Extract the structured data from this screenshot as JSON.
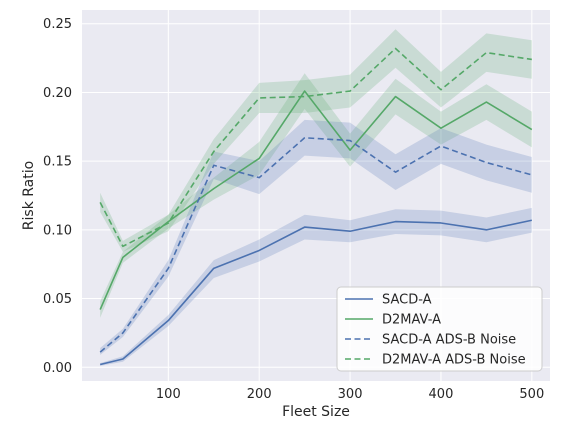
{
  "chart_data": {
    "type": "line",
    "title": "",
    "xlabel": "Fleet Size",
    "ylabel": "Risk Ratio",
    "xlim": [
      5,
      520
    ],
    "ylim": [
      -0.01,
      0.26
    ],
    "xticks": [
      100,
      200,
      300,
      400,
      500
    ],
    "xtick_labels": [
      "100",
      "200",
      "300",
      "400",
      "500"
    ],
    "yticks": [
      0.0,
      0.05,
      0.1,
      0.15,
      0.2,
      0.25
    ],
    "ytick_labels": [
      "0.00",
      "0.05",
      "0.10",
      "0.15",
      "0.20",
      "0.25"
    ],
    "grid": true,
    "background": "#eaeaf2",
    "legend_position": "lower right",
    "x": [
      25,
      50,
      100,
      150,
      200,
      250,
      300,
      350,
      400,
      450,
      500
    ],
    "series": [
      {
        "name": "SACD-A",
        "color": "#4c72b0",
        "style": "solid",
        "values": [
          0.002,
          0.006,
          0.034,
          0.072,
          0.085,
          0.102,
          0.099,
          0.106,
          0.105,
          0.1,
          0.107
        ],
        "band": [
          [
            0.001,
            0.003
          ],
          [
            0.004,
            0.008
          ],
          [
            0.03,
            0.038
          ],
          [
            0.065,
            0.078
          ],
          [
            0.077,
            0.093
          ],
          [
            0.093,
            0.111
          ],
          [
            0.091,
            0.107
          ],
          [
            0.097,
            0.115
          ],
          [
            0.096,
            0.114
          ],
          [
            0.091,
            0.109
          ],
          [
            0.098,
            0.116
          ]
        ]
      },
      {
        "name": "D2MAV-A",
        "color": "#55a868",
        "style": "solid",
        "values": [
          0.042,
          0.08,
          0.106,
          0.13,
          0.152,
          0.201,
          0.158,
          0.197,
          0.174,
          0.193,
          0.173
        ],
        "band": [
          [
            0.036,
            0.048
          ],
          [
            0.076,
            0.084
          ],
          [
            0.101,
            0.111
          ],
          [
            0.122,
            0.138
          ],
          [
            0.14,
            0.164
          ],
          [
            0.188,
            0.214
          ],
          [
            0.146,
            0.17
          ],
          [
            0.184,
            0.21
          ],
          [
            0.162,
            0.186
          ],
          [
            0.18,
            0.206
          ],
          [
            0.16,
            0.186
          ]
        ]
      },
      {
        "name": "SACD-A ADS-B Noise",
        "color": "#4c72b0",
        "style": "dashed",
        "values": [
          0.011,
          0.025,
          0.072,
          0.147,
          0.138,
          0.167,
          0.165,
          0.142,
          0.161,
          0.149,
          0.14
        ],
        "band": [
          [
            0.009,
            0.014
          ],
          [
            0.022,
            0.028
          ],
          [
            0.066,
            0.078
          ],
          [
            0.137,
            0.157
          ],
          [
            0.126,
            0.15
          ],
          [
            0.154,
            0.18
          ],
          [
            0.152,
            0.178
          ],
          [
            0.129,
            0.155
          ],
          [
            0.148,
            0.174
          ],
          [
            0.136,
            0.162
          ],
          [
            0.127,
            0.153
          ]
        ]
      },
      {
        "name": "D2MAV-A ADS-B Noise",
        "color": "#55a868",
        "style": "dashed",
        "values": [
          0.12,
          0.088,
          0.105,
          0.157,
          0.196,
          0.197,
          0.201,
          0.232,
          0.202,
          0.229,
          0.224
        ],
        "band": [
          [
            0.113,
            0.127
          ],
          [
            0.084,
            0.092
          ],
          [
            0.099,
            0.111
          ],
          [
            0.148,
            0.166
          ],
          [
            0.185,
            0.207
          ],
          [
            0.185,
            0.209
          ],
          [
            0.189,
            0.213
          ],
          [
            0.218,
            0.246
          ],
          [
            0.189,
            0.215
          ],
          [
            0.215,
            0.243
          ],
          [
            0.21,
            0.238
          ]
        ]
      }
    ]
  }
}
